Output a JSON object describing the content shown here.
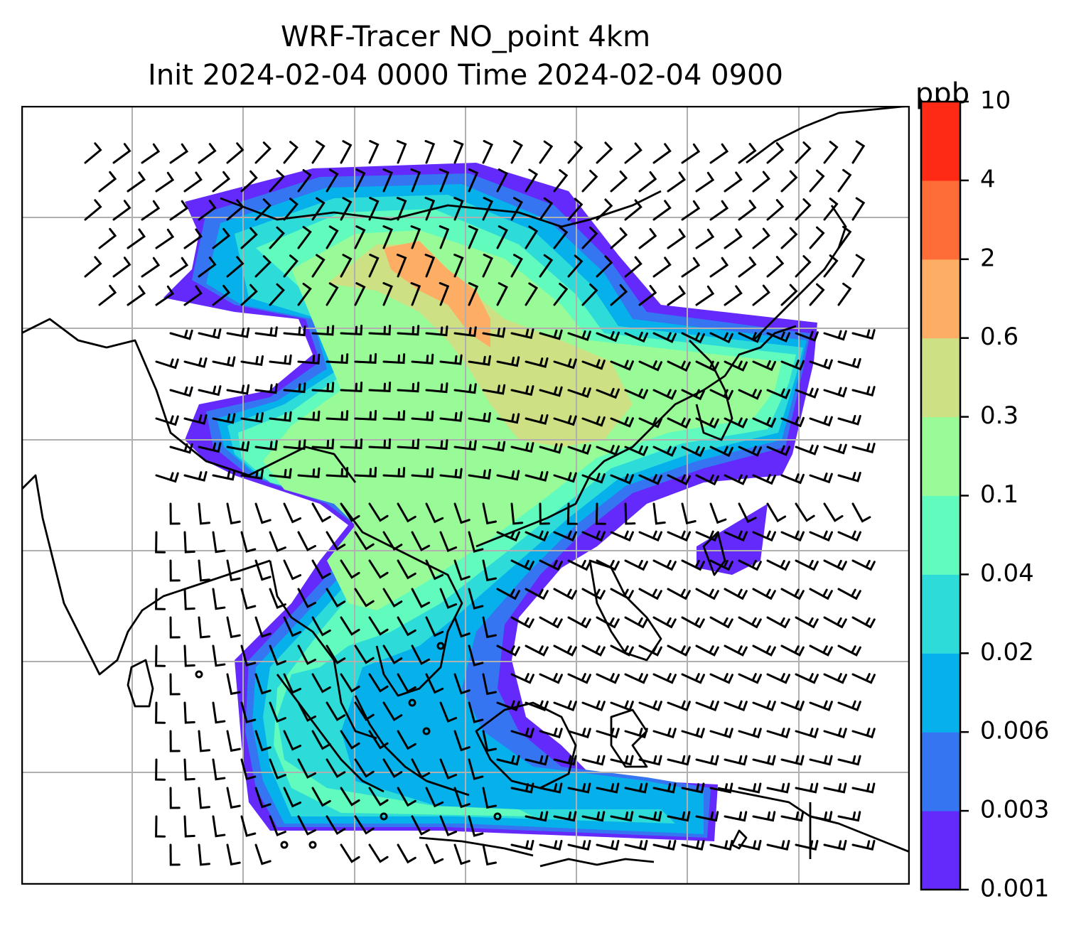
{
  "title": {
    "line1": "WRF-Tracer NO_point 4km",
    "line2": "Init 2024-02-04 0000 Time 2024-02-04 0900"
  },
  "colorbar": {
    "unit": "ppb",
    "ticks": [
      "0.001",
      "0.003",
      "0.006",
      "0.02",
      "0.04",
      "0.1",
      "0.3",
      "0.6",
      "2",
      "4",
      "10"
    ],
    "colors": [
      "#6429fb",
      "#3575f1",
      "#06b0ea",
      "#2ddcd9",
      "#60fbbd",
      "#98fb98",
      "#cde084",
      "#fdad64",
      "#fe6c37",
      "#fe2a15"
    ]
  },
  "map": {
    "boundary_color": "#000000",
    "grid_color": "#b0b0b0",
    "barb_color": "#000000"
  }
}
